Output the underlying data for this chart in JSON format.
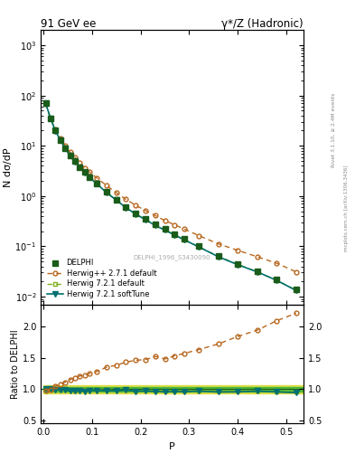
{
  "title_left": "91 GeV ee",
  "title_right": "γ*/Z (Hadronic)",
  "xlabel": "P",
  "ylabel_top": "N dσ/dP",
  "ylabel_bottom": "Ratio to DELPHI",
  "right_label_top": "Rivet 3.1.10, ≥ 2.4M events",
  "right_label_bot": "mcplots.cern.ch [arXiv:1306.3436]",
  "watermark": "DELPHI_1996_S3430090",
  "P_data": [
    0.005,
    0.015,
    0.025,
    0.035,
    0.045,
    0.055,
    0.065,
    0.075,
    0.085,
    0.095,
    0.11,
    0.13,
    0.15,
    0.17,
    0.19,
    0.21,
    0.23,
    0.25,
    0.27,
    0.29,
    0.32,
    0.36,
    0.4,
    0.44,
    0.48,
    0.52
  ],
  "delphi_y": [
    70.0,
    35.0,
    20.0,
    13.0,
    9.0,
    6.5,
    5.0,
    3.8,
    3.0,
    2.4,
    1.8,
    1.2,
    0.85,
    0.6,
    0.45,
    0.35,
    0.27,
    0.22,
    0.175,
    0.14,
    0.1,
    0.065,
    0.045,
    0.032,
    0.022,
    0.014
  ],
  "delphi_err": [
    2.5,
    1.5,
    0.8,
    0.55,
    0.38,
    0.28,
    0.22,
    0.17,
    0.13,
    0.11,
    0.08,
    0.055,
    0.038,
    0.028,
    0.022,
    0.017,
    0.013,
    0.011,
    0.009,
    0.008,
    0.006,
    0.004,
    0.003,
    0.0025,
    0.0017,
    0.0012
  ],
  "herwig_pp_y": [
    68.0,
    34.5,
    21.0,
    14.0,
    10.0,
    7.5,
    5.9,
    4.6,
    3.65,
    3.0,
    2.3,
    1.62,
    1.17,
    0.86,
    0.655,
    0.515,
    0.41,
    0.325,
    0.268,
    0.22,
    0.163,
    0.112,
    0.083,
    0.062,
    0.046,
    0.031
  ],
  "herwig721_y": [
    70.5,
    35.5,
    20.0,
    13.0,
    9.0,
    6.4,
    4.9,
    3.75,
    2.95,
    2.38,
    1.78,
    1.18,
    0.84,
    0.595,
    0.44,
    0.345,
    0.265,
    0.215,
    0.17,
    0.136,
    0.098,
    0.063,
    0.044,
    0.031,
    0.021,
    0.0135
  ],
  "herwig721_soft_y": [
    70.0,
    35.0,
    19.8,
    12.9,
    8.9,
    6.3,
    4.85,
    3.7,
    2.9,
    2.35,
    1.76,
    1.17,
    0.83,
    0.59,
    0.435,
    0.34,
    0.26,
    0.21,
    0.168,
    0.134,
    0.097,
    0.062,
    0.043,
    0.031,
    0.021,
    0.0132
  ],
  "ratio_herwig_pp": [
    0.97,
    0.99,
    1.05,
    1.08,
    1.11,
    1.15,
    1.18,
    1.21,
    1.22,
    1.25,
    1.28,
    1.35,
    1.38,
    1.43,
    1.46,
    1.47,
    1.52,
    1.48,
    1.53,
    1.57,
    1.63,
    1.72,
    1.84,
    1.94,
    2.09,
    2.21
  ],
  "ratio_herwig721": [
    1.007,
    1.014,
    1.0,
    1.0,
    1.0,
    0.985,
    0.98,
    0.987,
    0.983,
    0.992,
    0.989,
    0.983,
    0.988,
    0.992,
    0.978,
    0.986,
    0.981,
    0.977,
    0.971,
    0.971,
    0.98,
    0.969,
    0.978,
    0.969,
    0.955,
    0.964
  ],
  "ratio_herwig721_soft": [
    1.0,
    1.0,
    0.99,
    0.992,
    0.989,
    0.969,
    0.97,
    0.974,
    0.967,
    0.979,
    0.978,
    0.975,
    0.976,
    0.983,
    0.967,
    0.971,
    0.963,
    0.955,
    0.96,
    0.957,
    0.97,
    0.954,
    0.956,
    0.969,
    0.955,
    0.943
  ],
  "band_P": [
    0.0,
    0.54
  ],
  "band_yellow_lo": 0.935,
  "band_yellow_hi": 1.065,
  "band_green_lo": 0.965,
  "band_green_hi": 1.035,
  "color_delphi": "#1a5c1a",
  "color_herwig_pp": "#b86820",
  "color_herwig721": "#80b020",
  "color_herwig721_soft": "#007070",
  "color_band_yellow": "#d8d820",
  "color_band_green": "#30b030",
  "legend_labels": [
    "DELPHI",
    "Herwig++ 2.7.1 default",
    "Herwig 7.2.1 default",
    "Herwig 7.2.1 softTune"
  ]
}
